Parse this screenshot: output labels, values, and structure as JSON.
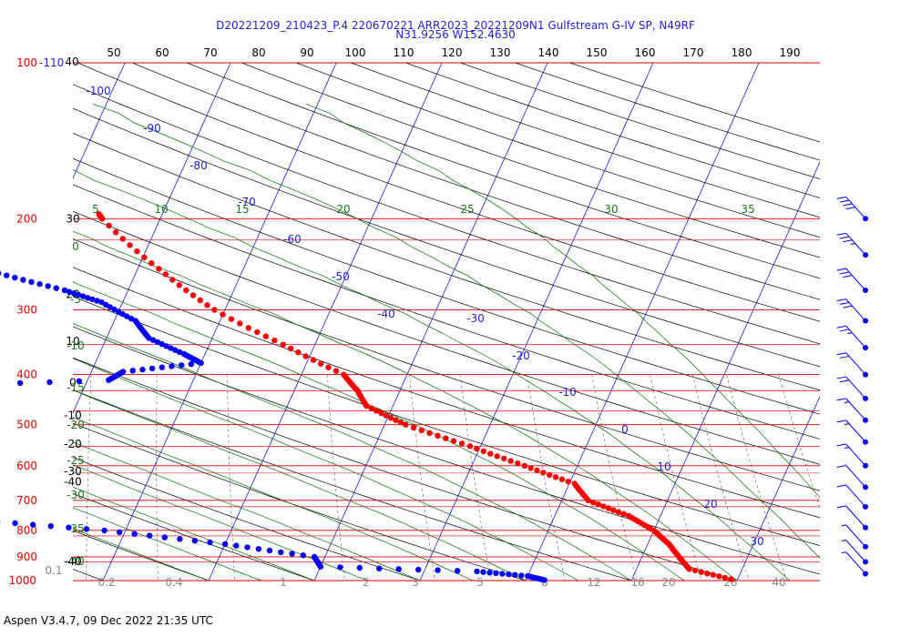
{
  "header": {
    "line1": "D20221209_210423_P.4 220670221 ARR2023_20221209N1 Gulfstream G-IV SP, N49RF",
    "line2": "N31.9256 W152.4630"
  },
  "footer": {
    "text": "Aspen V3.4.7, 09 Dec 2022  21:35 UTC"
  },
  "chart_data": {
    "type": "skew-t log-p",
    "y_axis": {
      "scale": "log",
      "unit": "hPa",
      "range": [
        100,
        1000
      ],
      "pressure_ticks": [
        "100",
        "200",
        "300",
        "400",
        "500",
        "600",
        "700",
        "800",
        "900",
        "1000"
      ],
      "top_label_extra": "-110"
    },
    "x_axis_top": {
      "unit": "°F",
      "ticks": [
        "40",
        "50",
        "60",
        "70",
        "80",
        "90",
        "100",
        "110",
        "120",
        "130",
        "140",
        "150",
        "160",
        "170",
        "180",
        "190"
      ]
    },
    "height_labels": [
      "40",
      "30",
      "20",
      "10",
      "0",
      "-10",
      "-20",
      "-30",
      "-40"
    ],
    "isotherm_labels": [
      "-100",
      "-90",
      "-80",
      "-70",
      "-60",
      "-50",
      "-40",
      "-30",
      "-20",
      "-10",
      "0",
      "10",
      "20",
      "30"
    ],
    "dry_adiabat_labels": [
      "0",
      "-5",
      "-10",
      "-15",
      "-20",
      "-25",
      "-30",
      "-35",
      "-40"
    ],
    "moist_adiabat_labels": [
      "5",
      "10",
      "15",
      "20",
      "25",
      "30",
      "35"
    ],
    "mixing_ratio_labels": [
      "0.1",
      "0.2",
      "0.4",
      "1",
      "2",
      "3",
      "5",
      "8",
      "12",
      "16",
      "20",
      "28",
      "40"
    ],
    "series": [
      {
        "name": "",
        "color": "#ff0000",
        "points": [
          [
            196,
            -56
          ],
          [
            200,
            -55.5
          ],
          [
            250,
            -48
          ],
          [
            300,
            -41
          ],
          [
            350,
            -33
          ],
          [
            400,
            -26
          ],
          [
            430,
            -24
          ],
          [
            460,
            -22.5
          ],
          [
            500,
            -18
          ],
          [
            550,
            -11
          ],
          [
            600,
            -5
          ],
          [
            650,
            0.5
          ],
          [
            700,
            2.5
          ],
          [
            750,
            7
          ],
          [
            800,
            10
          ],
          [
            850,
            12
          ],
          [
            900,
            13.5
          ],
          [
            950,
            15
          ],
          [
            1000,
            20
          ]
        ]
      },
      {
        "name": "",
        "color": "#0000ff",
        "points": [
          [
            245,
            -66
          ],
          [
            255,
            -63
          ],
          [
            275,
            -56
          ],
          [
            290,
            -52
          ],
          [
            315,
            -48
          ],
          [
            340,
            -46
          ],
          [
            365,
            -42
          ],
          [
            380,
            -40
          ],
          [
            395,
            -47
          ],
          [
            410,
            -48
          ],
          [
            425,
            -70
          ],
          [
            450,
            -78
          ],
          [
            470,
            -76
          ],
          [
            500,
            -72
          ],
          [
            525,
            -69
          ],
          [
            560,
            -70
          ],
          [
            600,
            -68
          ],
          [
            640,
            -70
          ],
          [
            680,
            -62
          ],
          [
            720,
            -60
          ],
          [
            760,
            -56
          ],
          [
            800,
            -42
          ],
          [
            850,
            -30
          ],
          [
            900,
            -21
          ],
          [
            940,
            -20
          ],
          [
            960,
            -5
          ],
          [
            980,
            0
          ],
          [
            1000,
            2
          ]
        ]
      }
    ],
    "wind_barbs": [
      {
        "pressure": 200,
        "kt": 40
      },
      {
        "pressure": 235,
        "kt": 35
      },
      {
        "pressure": 275,
        "kt": 30
      },
      {
        "pressure": 315,
        "kt": 30
      },
      {
        "pressure": 355,
        "kt": 25
      },
      {
        "pressure": 400,
        "kt": 20
      },
      {
        "pressure": 445,
        "kt": 20
      },
      {
        "pressure": 490,
        "kt": 15
      },
      {
        "pressure": 540,
        "kt": 15
      },
      {
        "pressure": 600,
        "kt": 15
      },
      {
        "pressure": 660,
        "kt": 10
      },
      {
        "pressure": 720,
        "kt": 10
      },
      {
        "pressure": 790,
        "kt": 10
      },
      {
        "pressure": 860,
        "kt": 5
      },
      {
        "pressure": 920,
        "kt": 5
      },
      {
        "pressure": 970,
        "kt": 5
      }
    ],
    "colors": {
      "isobar": "#d40000",
      "isotherm": "#0000cc",
      "dry_adiabat": "#000000",
      "moist_adiabat": "#007000",
      "mixing_ratio": "#555555",
      "temperature": "#ff0000",
      "dewpoint": "#0000ff",
      "pressure_label": "#e00000",
      "height_label": "#000000"
    }
  }
}
